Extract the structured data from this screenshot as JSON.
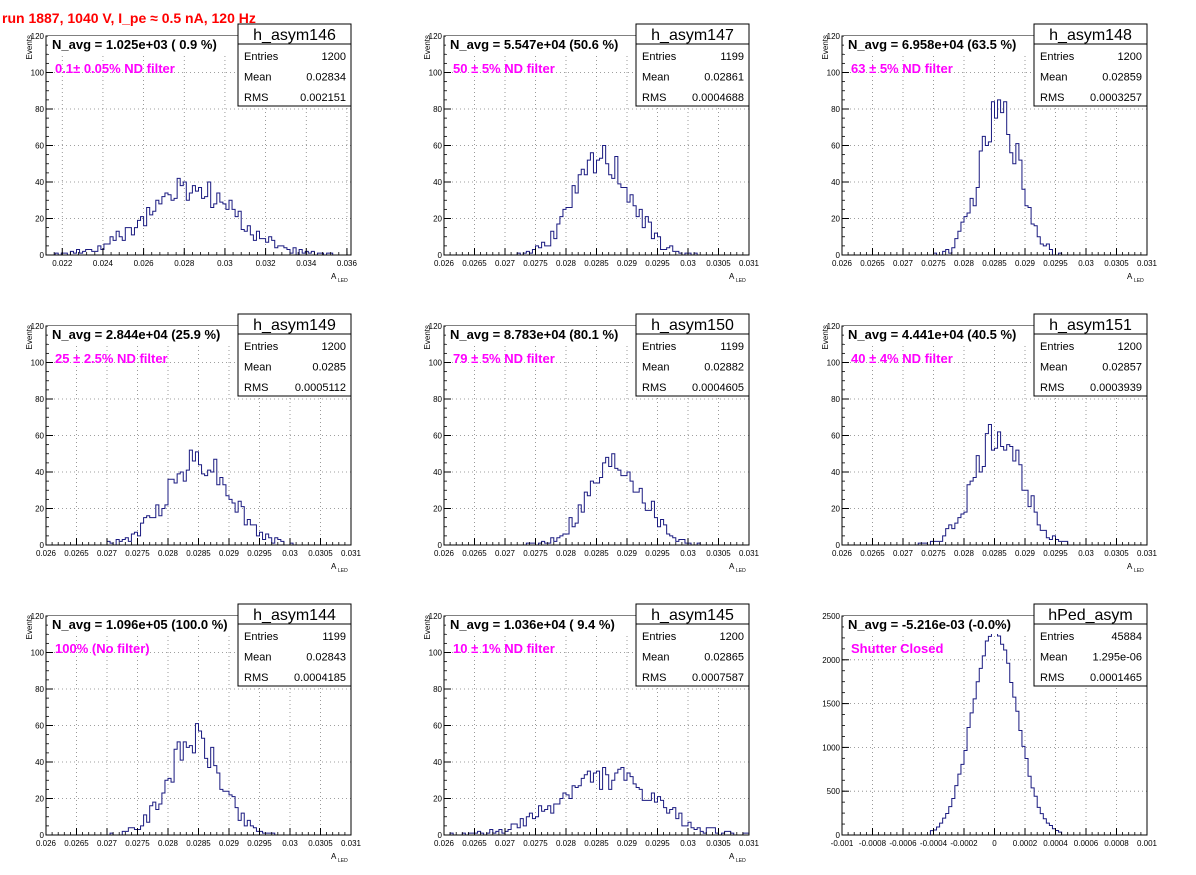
{
  "header": {
    "title": "run 1887,  1040 V, I_pe ≈ 0.5 nA, 120 Hz"
  },
  "colors": {
    "histogram": "#1a1a80",
    "title": "#ff0000",
    "annotation": "#ff00ff",
    "grid": "#808080"
  },
  "chart_data": [
    {
      "type": "histogram",
      "name": "h_asym146",
      "nav": "N_avg = 1.025e+03 ( 0.9 %)",
      "note": "0.1± 0.05% ND filter",
      "entries": "1200",
      "mean": "0.02834",
      "rms": "0.002151",
      "xlabel": "A",
      "xlabel_sub": "LED",
      "ylabel": "Events",
      "xlim": [
        0.0212,
        0.0362
      ],
      "ylim": [
        0,
        120
      ],
      "xticks": [
        {
          "v": 0.022,
          "l": "0.022"
        },
        {
          "v": 0.024,
          "l": "0.024"
        },
        {
          "v": 0.026,
          "l": "0.026"
        },
        {
          "v": 0.028,
          "l": "0.028"
        },
        {
          "v": 0.03,
          "l": "0.03"
        },
        {
          "v": 0.032,
          "l": "0.032"
        },
        {
          "v": 0.034,
          "l": "0.034"
        },
        {
          "v": 0.036,
          "l": "0.036"
        }
      ],
      "yticks": [
        0,
        20,
        40,
        60,
        80,
        100,
        120
      ],
      "center": 0.02834,
      "sigma": 0.002151,
      "peak": 36,
      "seed": 146
    },
    {
      "type": "histogram",
      "name": "h_asym147",
      "nav": "N_avg = 5.547e+04 (50.6 %)",
      "note": "50 ± 5% ND filter",
      "entries": "1199",
      "mean": "0.02861",
      "rms": "0.0004688",
      "xlabel": "A",
      "xlabel_sub": "LED",
      "ylabel": "Events",
      "xlim": [
        0.026,
        0.031
      ],
      "ylim": [
        0,
        120
      ],
      "xticks": [
        {
          "v": 0.026,
          "l": "0.026"
        },
        {
          "v": 0.0265,
          "l": "0.0265"
        },
        {
          "v": 0.027,
          "l": "0.027"
        },
        {
          "v": 0.0275,
          "l": "0.0275"
        },
        {
          "v": 0.028,
          "l": "0.028"
        },
        {
          "v": 0.0285,
          "l": "0.0285"
        },
        {
          "v": 0.029,
          "l": "0.029"
        },
        {
          "v": 0.0295,
          "l": "0.0295"
        },
        {
          "v": 0.03,
          "l": "0.03"
        },
        {
          "v": 0.0305,
          "l": "0.0305"
        },
        {
          "v": 0.031,
          "l": "0.031"
        }
      ],
      "yticks": [
        0,
        20,
        40,
        60,
        80,
        100,
        120
      ],
      "center": 0.02861,
      "sigma": 0.0004688,
      "peak": 52,
      "seed": 147
    },
    {
      "type": "histogram",
      "name": "h_asym148",
      "nav": "N_avg = 6.958e+04 (63.5 %)",
      "note": "63 ± 5% ND filter",
      "entries": "1200",
      "mean": "0.02859",
      "rms": "0.0003257",
      "xlabel": "A",
      "xlabel_sub": "LED",
      "ylabel": "Events",
      "xlim": [
        0.026,
        0.031
      ],
      "ylim": [
        0,
        120
      ],
      "xticks": [
        {
          "v": 0.026,
          "l": "0.026"
        },
        {
          "v": 0.0265,
          "l": "0.0265"
        },
        {
          "v": 0.027,
          "l": "0.027"
        },
        {
          "v": 0.0275,
          "l": "0.0275"
        },
        {
          "v": 0.028,
          "l": "0.028"
        },
        {
          "v": 0.0285,
          "l": "0.0285"
        },
        {
          "v": 0.029,
          "l": "0.029"
        },
        {
          "v": 0.0295,
          "l": "0.0295"
        },
        {
          "v": 0.03,
          "l": "0.03"
        },
        {
          "v": 0.0305,
          "l": "0.0305"
        },
        {
          "v": 0.031,
          "l": "0.031"
        }
      ],
      "yticks": [
        0,
        20,
        40,
        60,
        80,
        100,
        120
      ],
      "center": 0.02859,
      "sigma": 0.0003257,
      "peak": 78,
      "seed": 148
    },
    {
      "type": "histogram",
      "name": "h_asym149",
      "nav": "N_avg = 2.844e+04 (25.9 %)",
      "note": "25 ± 2.5% ND filter",
      "entries": "1200",
      "mean": "0.0285",
      "rms": "0.0005112",
      "xlabel": "A",
      "xlabel_sub": "LED",
      "ylabel": "Events",
      "xlim": [
        0.026,
        0.031
      ],
      "ylim": [
        0,
        120
      ],
      "xticks": [
        {
          "v": 0.026,
          "l": "0.026"
        },
        {
          "v": 0.0265,
          "l": "0.0265"
        },
        {
          "v": 0.027,
          "l": "0.027"
        },
        {
          "v": 0.0275,
          "l": "0.0275"
        },
        {
          "v": 0.028,
          "l": "0.028"
        },
        {
          "v": 0.0285,
          "l": "0.0285"
        },
        {
          "v": 0.029,
          "l": "0.029"
        },
        {
          "v": 0.0295,
          "l": "0.0295"
        },
        {
          "v": 0.03,
          "l": "0.03"
        },
        {
          "v": 0.0305,
          "l": "0.0305"
        },
        {
          "v": 0.031,
          "l": "0.031"
        }
      ],
      "yticks": [
        0,
        20,
        40,
        60,
        80,
        100,
        120
      ],
      "center": 0.0285,
      "sigma": 0.0005112,
      "peak": 47,
      "seed": 149
    },
    {
      "type": "histogram",
      "name": "h_asym150",
      "nav": "N_avg = 8.783e+04 (80.1 %)",
      "note": "79 ± 5% ND filter",
      "entries": "1199",
      "mean": "0.02882",
      "rms": "0.0004605",
      "xlabel": "A",
      "xlabel_sub": "LED",
      "ylabel": "Events",
      "xlim": [
        0.026,
        0.031
      ],
      "ylim": [
        0,
        120
      ],
      "xticks": [
        {
          "v": 0.026,
          "l": "0.026"
        },
        {
          "v": 0.0265,
          "l": "0.0265"
        },
        {
          "v": 0.027,
          "l": "0.027"
        },
        {
          "v": 0.0275,
          "l": "0.0275"
        },
        {
          "v": 0.028,
          "l": "0.028"
        },
        {
          "v": 0.0285,
          "l": "0.0285"
        },
        {
          "v": 0.029,
          "l": "0.029"
        },
        {
          "v": 0.0295,
          "l": "0.0295"
        },
        {
          "v": 0.03,
          "l": "0.03"
        },
        {
          "v": 0.0305,
          "l": "0.0305"
        },
        {
          "v": 0.031,
          "l": "0.031"
        }
      ],
      "yticks": [
        0,
        20,
        40,
        60,
        80,
        100,
        120
      ],
      "center": 0.02882,
      "sigma": 0.0004605,
      "peak": 46,
      "seed": 150
    },
    {
      "type": "histogram",
      "name": "h_asym151",
      "nav": "N_avg = 4.441e+04 (40.5 %)",
      "note": "40 ± 4% ND filter",
      "entries": "1200",
      "mean": "0.02857",
      "rms": "0.0003939",
      "xlabel": "A",
      "xlabel_sub": "LED",
      "ylabel": "Events",
      "xlim": [
        0.026,
        0.031
      ],
      "ylim": [
        0,
        120
      ],
      "xticks": [
        {
          "v": 0.026,
          "l": "0.026"
        },
        {
          "v": 0.0265,
          "l": "0.0265"
        },
        {
          "v": 0.027,
          "l": "0.027"
        },
        {
          "v": 0.0275,
          "l": "0.0275"
        },
        {
          "v": 0.028,
          "l": "0.028"
        },
        {
          "v": 0.0285,
          "l": "0.0285"
        },
        {
          "v": 0.029,
          "l": "0.029"
        },
        {
          "v": 0.0295,
          "l": "0.0295"
        },
        {
          "v": 0.03,
          "l": "0.03"
        },
        {
          "v": 0.0305,
          "l": "0.0305"
        },
        {
          "v": 0.031,
          "l": "0.031"
        }
      ],
      "yticks": [
        0,
        20,
        40,
        60,
        80,
        100,
        120
      ],
      "center": 0.02857,
      "sigma": 0.0003939,
      "peak": 60,
      "seed": 151
    },
    {
      "type": "histogram",
      "name": "h_asym144",
      "nav": "N_avg = 1.096e+05 (100.0 %)",
      "note": "100% (No filter)",
      "entries": "1199",
      "mean": "0.02843",
      "rms": "0.0004185",
      "xlabel": "A",
      "xlabel_sub": "LED",
      "ylabel": "Events",
      "xlim": [
        0.026,
        0.031
      ],
      "ylim": [
        0,
        120
      ],
      "xticks": [
        {
          "v": 0.026,
          "l": "0.026"
        },
        {
          "v": 0.0265,
          "l": "0.0265"
        },
        {
          "v": 0.027,
          "l": "0.027"
        },
        {
          "v": 0.0275,
          "l": "0.0275"
        },
        {
          "v": 0.028,
          "l": "0.028"
        },
        {
          "v": 0.0285,
          "l": "0.0285"
        },
        {
          "v": 0.029,
          "l": "0.029"
        },
        {
          "v": 0.0295,
          "l": "0.0295"
        },
        {
          "v": 0.03,
          "l": "0.03"
        },
        {
          "v": 0.0305,
          "l": "0.0305"
        },
        {
          "v": 0.031,
          "l": "0.031"
        }
      ],
      "yticks": [
        0,
        20,
        40,
        60,
        80,
        100,
        120
      ],
      "center": 0.02843,
      "sigma": 0.0004185,
      "peak": 52,
      "seed": 144
    },
    {
      "type": "histogram",
      "name": "h_asym145",
      "nav": "N_avg = 1.036e+04 ( 9.4 %)",
      "note": "10 ± 1% ND filter",
      "entries": "1200",
      "mean": "0.02865",
      "rms": "0.0007587",
      "xlabel": "A",
      "xlabel_sub": "LED",
      "ylabel": "Events",
      "xlim": [
        0.026,
        0.031
      ],
      "ylim": [
        0,
        120
      ],
      "xticks": [
        {
          "v": 0.026,
          "l": "0.026"
        },
        {
          "v": 0.0265,
          "l": "0.0265"
        },
        {
          "v": 0.027,
          "l": "0.027"
        },
        {
          "v": 0.0275,
          "l": "0.0275"
        },
        {
          "v": 0.028,
          "l": "0.028"
        },
        {
          "v": 0.0285,
          "l": "0.0285"
        },
        {
          "v": 0.029,
          "l": "0.029"
        },
        {
          "v": 0.0295,
          "l": "0.0295"
        },
        {
          "v": 0.03,
          "l": "0.03"
        },
        {
          "v": 0.0305,
          "l": "0.0305"
        },
        {
          "v": 0.031,
          "l": "0.031"
        }
      ],
      "yticks": [
        0,
        20,
        40,
        60,
        80,
        100,
        120
      ],
      "center": 0.02865,
      "sigma": 0.0007587,
      "peak": 32,
      "seed": 145
    },
    {
      "type": "histogram",
      "name": "hPed_asym",
      "nav": "N_avg = -5.216e-03 (-0.0%)",
      "note": "Shutter Closed",
      "entries": "45884",
      "mean": "1.295e-06",
      "rms": "0.0001465",
      "xlabel": "",
      "xlabel_sub": "",
      "ylabel": "",
      "xlim": [
        -0.001,
        0.001
      ],
      "ylim": [
        0,
        2500
      ],
      "xticks": [
        {
          "v": -0.001,
          "l": "-0.001"
        },
        {
          "v": -0.0008,
          "l": "-0.0008"
        },
        {
          "v": -0.0006,
          "l": "-0.0006"
        },
        {
          "v": -0.0004,
          "l": "-0.0004"
        },
        {
          "v": -0.0002,
          "l": "-0.0002"
        },
        {
          "v": 0,
          "l": "0"
        },
        {
          "v": 0.0002,
          "l": "0.0002"
        },
        {
          "v": 0.0004,
          "l": "0.0004"
        },
        {
          "v": 0.0006,
          "l": "0.0006"
        },
        {
          "v": 0.0008,
          "l": "0.0008"
        },
        {
          "v": 0.001,
          "l": "0.001"
        }
      ],
      "yticks": [
        0,
        500,
        1000,
        1500,
        2000,
        2500
      ],
      "center": 1.3e-06,
      "sigma": 0.0001465,
      "peak": 2350,
      "seed": 999
    }
  ]
}
